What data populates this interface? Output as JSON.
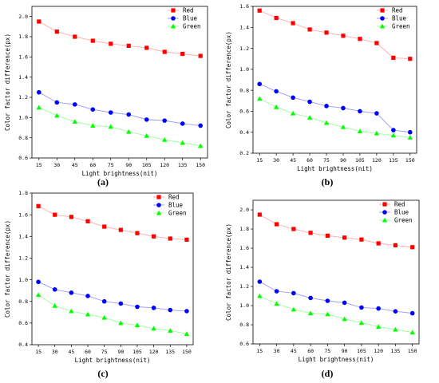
{
  "chart_data": [
    {
      "type": "line",
      "panel_label": "(a)",
      "xlabel": "Light brightness(nit)",
      "ylabel": "Color factor difference(px)",
      "x": [
        15,
        30,
        45,
        60,
        75,
        90,
        105,
        120,
        135,
        150
      ],
      "ylim": [
        0.6,
        2.1
      ],
      "yticks": [
        "0.6",
        "0.8",
        "1.0",
        "1.2",
        "1.4",
        "1.6",
        "1.8",
        "2.0"
      ],
      "legend_position": "top-right",
      "series": [
        {
          "name": "Red",
          "marker": "square",
          "color": "#ff0000",
          "line_color": "#ffaaaa",
          "values": [
            1.95,
            1.85,
            1.8,
            1.76,
            1.73,
            1.71,
            1.69,
            1.65,
            1.63,
            1.61
          ]
        },
        {
          "name": "Blue",
          "marker": "circle",
          "color": "#0000ff",
          "line_color": "#9999ff",
          "values": [
            1.25,
            1.15,
            1.13,
            1.08,
            1.05,
            1.03,
            0.98,
            0.97,
            0.94,
            0.92
          ]
        },
        {
          "name": "Green",
          "marker": "triangle",
          "color": "#00ff00",
          "line_color": "#99ff99",
          "values": [
            1.1,
            1.02,
            0.96,
            0.92,
            0.91,
            0.86,
            0.82,
            0.78,
            0.75,
            0.72
          ]
        }
      ]
    },
    {
      "type": "line",
      "panel_label": "(b)",
      "xlabel": "Light brightness(nit)",
      "ylabel": "Color factor difference(px)",
      "x": [
        15,
        30,
        45,
        60,
        75,
        90,
        105,
        120,
        135,
        150
      ],
      "ylim": [
        0.2,
        1.6
      ],
      "yticks": [
        "0.2",
        "0.4",
        "0.6",
        "0.8",
        "1.0",
        "1.2",
        "1.4",
        "1.6"
      ],
      "legend_position": "top-right",
      "series": [
        {
          "name": "Red",
          "marker": "square",
          "color": "#ff0000",
          "line_color": "#ffaaaa",
          "values": [
            1.56,
            1.49,
            1.44,
            1.38,
            1.35,
            1.32,
            1.29,
            1.25,
            1.11,
            1.1
          ]
        },
        {
          "name": "Blue",
          "marker": "circle",
          "color": "#0000ff",
          "line_color": "#9999ff",
          "values": [
            0.86,
            0.79,
            0.73,
            0.69,
            0.65,
            0.63,
            0.6,
            0.58,
            0.42,
            0.4
          ]
        },
        {
          "name": "Green",
          "marker": "triangle",
          "color": "#00ff00",
          "line_color": "#99ff99",
          "values": [
            0.72,
            0.64,
            0.58,
            0.54,
            0.49,
            0.45,
            0.41,
            0.39,
            0.37,
            0.35
          ]
        }
      ]
    },
    {
      "type": "line",
      "panel_label": "(c)",
      "xlabel": "Light brightness(nit)",
      "ylabel": "Color factor difference(px)",
      "x": [
        15,
        30,
        45,
        60,
        75,
        90,
        105,
        120,
        135,
        150
      ],
      "ylim": [
        0.4,
        1.8
      ],
      "yticks": [
        "0.4",
        "0.6",
        "0.8",
        "1.0",
        "1.2",
        "1.4",
        "1.6",
        "1.8"
      ],
      "legend_position": "top-right",
      "series": [
        {
          "name": "Red",
          "marker": "square",
          "color": "#ff0000",
          "line_color": "#ffaaaa",
          "values": [
            1.68,
            1.6,
            1.58,
            1.54,
            1.49,
            1.46,
            1.43,
            1.4,
            1.38,
            1.37
          ]
        },
        {
          "name": "Blue",
          "marker": "circle",
          "color": "#0000ff",
          "line_color": "#9999ff",
          "values": [
            0.98,
            0.91,
            0.88,
            0.85,
            0.8,
            0.78,
            0.75,
            0.74,
            0.72,
            0.71
          ]
        },
        {
          "name": "Green",
          "marker": "triangle",
          "color": "#00ff00",
          "line_color": "#99ff99",
          "values": [
            0.86,
            0.76,
            0.71,
            0.68,
            0.65,
            0.6,
            0.58,
            0.55,
            0.53,
            0.5
          ]
        }
      ]
    },
    {
      "type": "line",
      "panel_label": "(d)",
      "xlabel": "Light brightness(nit)",
      "ylabel": "Color factor difference(px)",
      "x": [
        15,
        30,
        45,
        60,
        75,
        90,
        105,
        120,
        135,
        150
      ],
      "ylim": [
        0.6,
        2.1
      ],
      "yticks": [
        "0.6",
        "0.8",
        "1.0",
        "1.2",
        "1.4",
        "1.6",
        "1.8",
        "2.0"
      ],
      "legend_position": "top-right",
      "series": [
        {
          "name": "Red",
          "marker": "square",
          "color": "#ff0000",
          "line_color": "#ffaaaa",
          "values": [
            1.95,
            1.85,
            1.8,
            1.76,
            1.73,
            1.71,
            1.69,
            1.65,
            1.63,
            1.61
          ]
        },
        {
          "name": "Blue",
          "marker": "circle",
          "color": "#0000ff",
          "line_color": "#9999ff",
          "values": [
            1.25,
            1.15,
            1.13,
            1.08,
            1.05,
            1.03,
            0.98,
            0.97,
            0.94,
            0.92
          ]
        },
        {
          "name": "Green",
          "marker": "triangle",
          "color": "#00ff00",
          "line_color": "#99ff99",
          "values": [
            1.1,
            1.02,
            0.96,
            0.92,
            0.91,
            0.86,
            0.82,
            0.78,
            0.75,
            0.72
          ]
        }
      ]
    }
  ]
}
